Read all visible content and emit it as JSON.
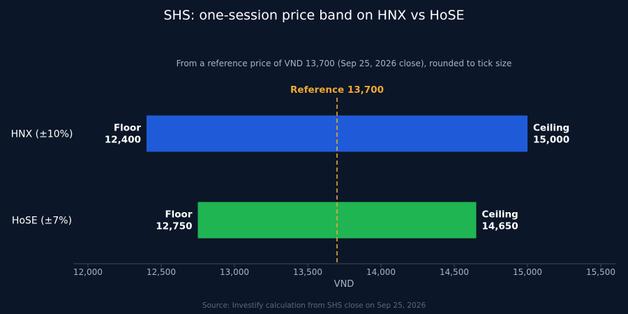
{
  "chart_data": {
    "type": "bar",
    "orientation": "horizontal-range",
    "title": "SHS: one-session price band on HNX vs HoSE",
    "subtitle": "From a reference price of VND 13,700 (Sep 25, 2026 close), rounded to tick size",
    "xlabel": "VND",
    "source": "Source: Investify calculation from SHS close on Sep 25, 2026",
    "xlim": [
      11900,
      15600
    ],
    "xticks": [
      12000,
      12500,
      13000,
      13500,
      14000,
      14500,
      15000,
      15500
    ],
    "xtick_labels": [
      "12,000",
      "12,500",
      "13,000",
      "13,500",
      "14,000",
      "14,500",
      "15,000",
      "15,500"
    ],
    "reference": {
      "value": 13700,
      "label": "Reference 13,700",
      "color": "#f0a830"
    },
    "floor_word": "Floor",
    "ceiling_word": "Ceiling",
    "categories": [
      "HNX (±10%)",
      "HoSE (±7%)"
    ],
    "series": [
      {
        "category": "HNX (±10%)",
        "floor": 12400,
        "ceiling": 15000,
        "floor_label": "12,400",
        "ceiling_label": "15,000",
        "color": "#1f5bd8"
      },
      {
        "category": "HoSE (±7%)",
        "floor": 12750,
        "ceiling": 14650,
        "floor_label": "12,750",
        "ceiling_label": "14,650",
        "color": "#1fb553"
      }
    ],
    "grid": false
  }
}
